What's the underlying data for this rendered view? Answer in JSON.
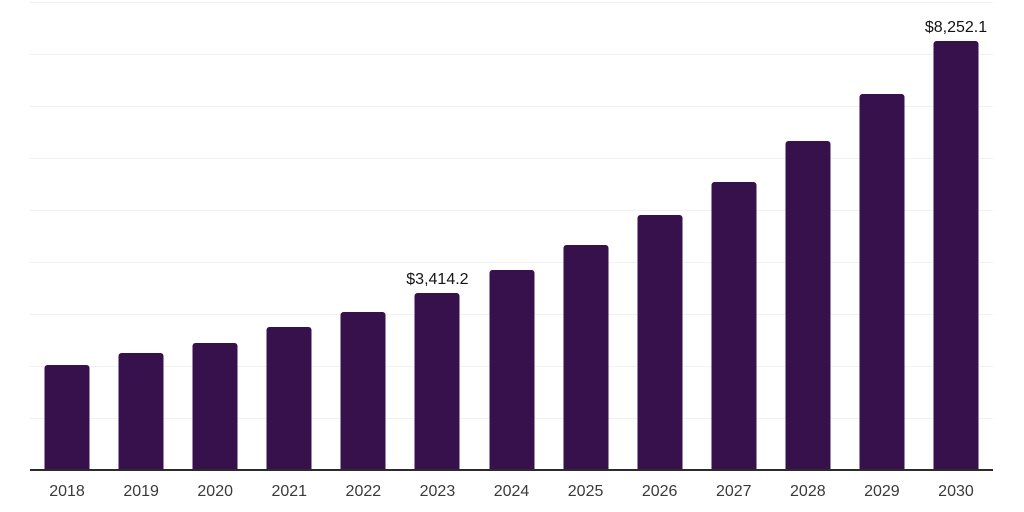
{
  "chart_data": {
    "type": "bar",
    "title": "",
    "xlabel": "",
    "ylabel": "",
    "categories": [
      "2018",
      "2019",
      "2020",
      "2021",
      "2022",
      "2023",
      "2024",
      "2025",
      "2026",
      "2027",
      "2028",
      "2029",
      "2030"
    ],
    "values": [
      2020,
      2245,
      2450,
      2750,
      3040,
      3414.2,
      3845,
      4330,
      4905,
      5545,
      6320,
      7230,
      8252.1
    ],
    "value_labels": [
      "",
      "",
      "",
      "",
      "",
      "$3,414.2",
      "",
      "",
      "",
      "",
      "",
      "",
      "$8,252.1"
    ],
    "ylim": [
      0,
      9000
    ],
    "gridline_step": 1000,
    "grid": "horizontal",
    "legend_position": "none",
    "colors": {
      "bar": "#36114C",
      "gridline": "#F1F1F1",
      "axis_line": "#2B2B2B",
      "year_label": "#3A3A3A",
      "value_label": "#141414",
      "background": "#FFFFFF"
    }
  }
}
